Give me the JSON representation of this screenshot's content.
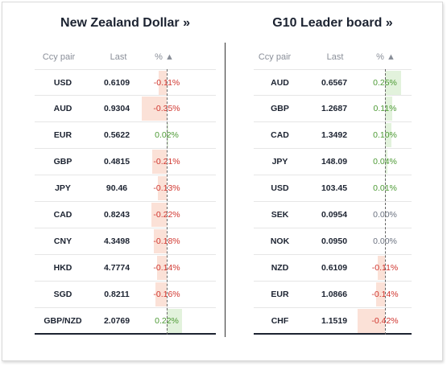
{
  "left": {
    "title": "New Zealand Dollar »",
    "headers": {
      "pair": "Ccy pair",
      "last": "Last",
      "pct": "% ▲"
    },
    "rows": [
      {
        "pair": "USD",
        "last": "0.6109",
        "pct": "-0.11%",
        "value": -0.11
      },
      {
        "pair": "AUD",
        "last": "0.9304",
        "pct": "-0.35%",
        "value": -0.35
      },
      {
        "pair": "EUR",
        "last": "0.5622",
        "pct": "0.02%",
        "value": 0.02
      },
      {
        "pair": "GBP",
        "last": "0.4815",
        "pct": "-0.21%",
        "value": -0.21
      },
      {
        "pair": "JPY",
        "last": "90.46",
        "pct": "-0.13%",
        "value": -0.13
      },
      {
        "pair": "CAD",
        "last": "0.8243",
        "pct": "-0.22%",
        "value": -0.22
      },
      {
        "pair": "CNY",
        "last": "4.3498",
        "pct": "-0.18%",
        "value": -0.18
      },
      {
        "pair": "HKD",
        "last": "4.7774",
        "pct": "-0.14%",
        "value": -0.14
      },
      {
        "pair": "SGD",
        "last": "0.8211",
        "pct": "-0.16%",
        "value": -0.16
      },
      {
        "pair": "GBP/NZD",
        "last": "2.0769",
        "pct": "0.22%",
        "value": 0.22
      }
    ]
  },
  "right": {
    "title": "G10 Leader board »",
    "headers": {
      "pair": "Ccy pair",
      "last": "Last",
      "pct": "% ▲"
    },
    "rows": [
      {
        "pair": "AUD",
        "last": "0.6567",
        "pct": "0.25%",
        "value": 0.25
      },
      {
        "pair": "GBP",
        "last": "1.2687",
        "pct": "0.11%",
        "value": 0.11
      },
      {
        "pair": "CAD",
        "last": "1.3492",
        "pct": "0.10%",
        "value": 0.1
      },
      {
        "pair": "JPY",
        "last": "148.09",
        "pct": "0.04%",
        "value": 0.04
      },
      {
        "pair": "USD",
        "last": "103.45",
        "pct": "0.01%",
        "value": 0.01
      },
      {
        "pair": "SEK",
        "last": "0.0954",
        "pct": "0.00%",
        "value": 0.0
      },
      {
        "pair": "NOK",
        "last": "0.0950",
        "pct": "0.00%",
        "value": 0.0
      },
      {
        "pair": "NZD",
        "last": "0.6109",
        "pct": "-0.11%",
        "value": -0.11
      },
      {
        "pair": "EUR",
        "last": "1.0866",
        "pct": "-0.14%",
        "value": -0.14
      },
      {
        "pair": "CHF",
        "last": "1.1519",
        "pct": "-0.42%",
        "value": -0.42
      }
    ]
  },
  "colors": {
    "negative_text": "#d0352e",
    "positive_text": "#4d9a35",
    "negative_bar": "#fbe1d7",
    "positive_bar": "#e2f2dc",
    "title": "#1c2331"
  }
}
